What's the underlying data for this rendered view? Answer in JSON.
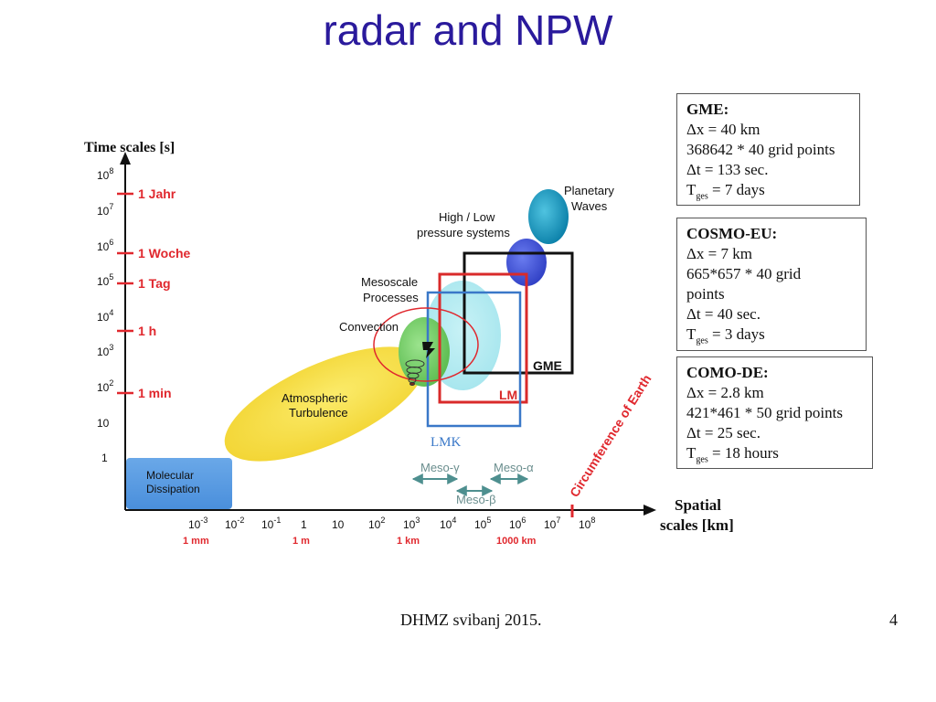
{
  "title": "radar and NPW",
  "colors": {
    "title": "#2a1a9c",
    "red": "#e0282e",
    "gme": "#111111",
    "lm": "#d92a2a",
    "lmk": "#3a78c8"
  },
  "diagram": {
    "y_axis_title": "Time scales [s]",
    "x_axis_title_1": "Spatial",
    "x_axis_title_2": "scales [km]",
    "y_ticks": [
      {
        "base": "10",
        "exp": "8"
      },
      {
        "base": "10",
        "exp": "7"
      },
      {
        "base": "10",
        "exp": "6"
      },
      {
        "base": "10",
        "exp": "5"
      },
      {
        "base": "10",
        "exp": "4"
      },
      {
        "base": "10",
        "exp": "3"
      },
      {
        "base": "10",
        "exp": "2"
      },
      {
        "base": "10",
        "exp": ""
      },
      {
        "base": "1",
        "exp": ""
      }
    ],
    "time_marks": [
      "1 Jahr",
      "1 Woche",
      "1 Tag",
      "1 h",
      "1 min"
    ],
    "x_ticks": [
      {
        "base": "10",
        "exp": "-3"
      },
      {
        "base": "10",
        "exp": "-2"
      },
      {
        "base": "10",
        "exp": "-1"
      },
      {
        "base": "1",
        "exp": ""
      },
      {
        "base": "10",
        "exp": ""
      },
      {
        "base": "10",
        "exp": "2"
      },
      {
        "base": "10",
        "exp": "3"
      },
      {
        "base": "10",
        "exp": "4"
      },
      {
        "base": "10",
        "exp": "5"
      },
      {
        "base": "10",
        "exp": "6"
      },
      {
        "base": "10",
        "exp": "7"
      },
      {
        "base": "10",
        "exp": "8"
      }
    ],
    "x_marks": [
      "1 mm",
      "1 m",
      "1 km",
      "1000 km"
    ],
    "phenomena": {
      "molecular_1": "Molecular",
      "molecular_2": "Dissipation",
      "atmospheric_1": "Atmospheric",
      "atmospheric_2": "Turbulence",
      "convection": "Convection",
      "mesoscale_1": "Mesoscale",
      "mesoscale_2": "Processes",
      "highlow_1": "High / Low",
      "highlow_2": "pressure systems",
      "planetary_1": "Planetary",
      "planetary_2": "Waves"
    },
    "models": {
      "gme": "GME",
      "lm": "LM",
      "lmk": "LMK"
    },
    "meso": {
      "gamma": "Meso-γ",
      "alpha": "Meso-α",
      "beta": "Meso-β"
    },
    "circumference": "Circumference of Earth"
  },
  "boxes": {
    "gme": {
      "name": "GME:",
      "l1": "Δx = 40 km",
      "l2": "368642 * 40 grid points",
      "l3": "Δt = 133 sec.",
      "t_main": "T",
      "t_sub": "ges",
      "t_rest": " = 7 days"
    },
    "cosmo_eu": {
      "name": "COSMO-EU:",
      "l1": "Δx = 7 km",
      "l2": "665*657 * 40 grid",
      "l3": "points",
      "l4": "Δt = 40 sec.",
      "t_main": "T",
      "t_sub": "ges",
      "t_rest": " = 3 days"
    },
    "como_de": {
      "name": "COMO-DE:",
      "l1": "Δx = 2.8 km",
      "l2": "421*461 * 50 grid points",
      "l3": "Δt = 25 sec.",
      "t_main": "T",
      "t_sub": "ges",
      "t_rest": " = 18 hours"
    }
  },
  "footer": {
    "text": "DHMZ svibanj 2015.",
    "page": "4"
  }
}
